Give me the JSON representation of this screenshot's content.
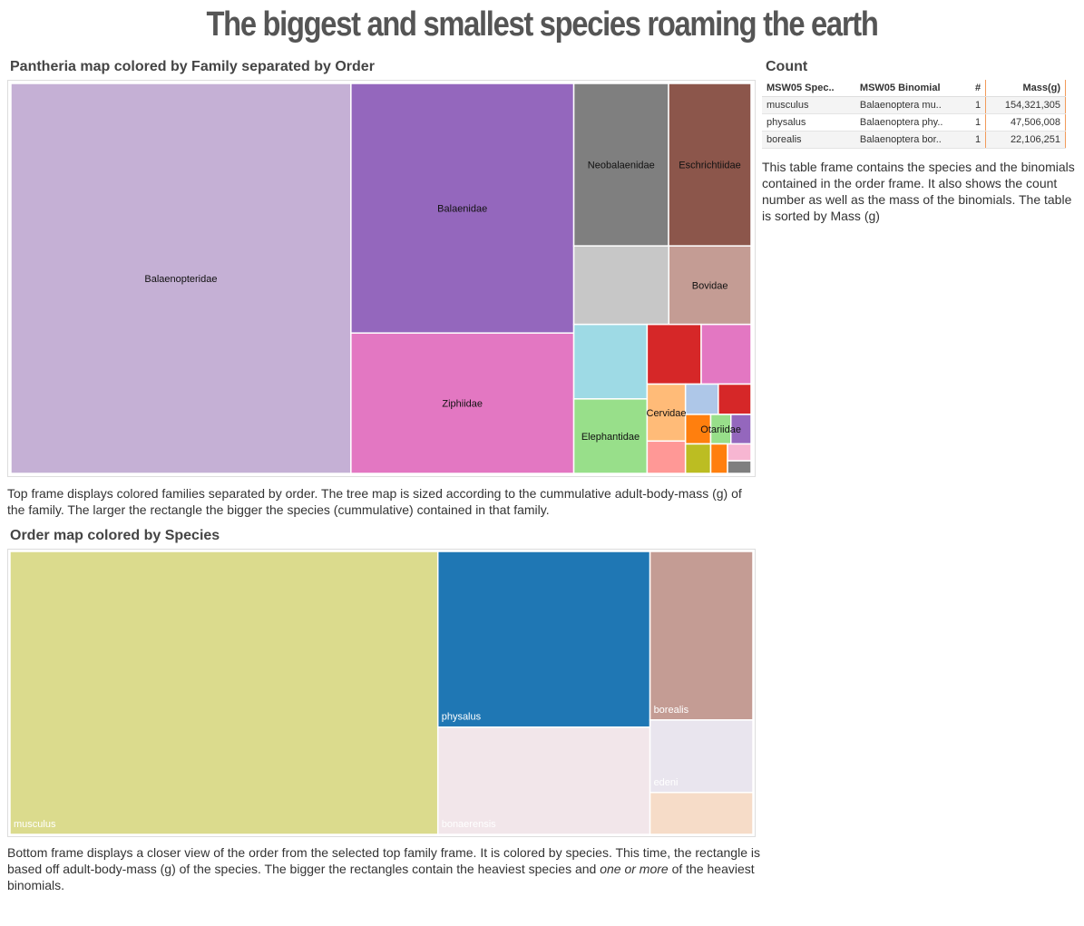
{
  "header": {
    "title": "The biggest and smallest species roaming the earth"
  },
  "chart_data": [
    {
      "type": "treemap",
      "title": "Pantheria map colored by Family separated by Order",
      "categories": [
        "Balaenopteridae",
        "Balaenidae",
        "Ziphiidae",
        "Neobalaenidae",
        "Eschrichtiidae",
        null,
        "Bovidae",
        null,
        "Elephantidae",
        null,
        null,
        "Cervidae",
        null,
        null,
        null,
        null,
        null,
        "Otariidae",
        null,
        null,
        null,
        null
      ],
      "values": [
        267000000,
        112000000,
        63000000,
        31000000,
        27000000,
        15000000,
        13000000,
        11000000,
        11000000,
        6500000,
        6000000,
        4400000,
        2500000,
        2000000,
        2000000,
        1500000,
        1500000,
        1200000,
        1200000,
        1000000,
        800000,
        600000
      ],
      "colors": [
        "#c5b0d5",
        "#9467bd",
        "#e377c2",
        "#7f7f7f",
        "#8c564b",
        "#c7c7c7",
        "#c49c94",
        "#9edae5",
        "#98df8a",
        "#d62728",
        "#e377c2",
        "#ffbb78",
        "#ff9896",
        "#aec7e8",
        "#d62728",
        "#ff7f0e",
        "#bcbd22",
        "#98df8a",
        "#9467bd",
        "#ff7f0e",
        "#f7b6d2",
        "#7f7f7f"
      ]
    },
    {
      "type": "treemap",
      "title": "Order map colored by Species",
      "categories": [
        "musculus",
        "physalus",
        "bonaerensis",
        "borealis",
        "edeni",
        null
      ],
      "values": [
        154321305,
        47506008,
        29000000,
        22106251,
        9500000,
        5500000
      ],
      "colors": [
        "#dbdb8d",
        "#1f77b4",
        "#f2e6ea",
        "#c49c94",
        "#e9e5ee",
        "#f6dcc8"
      ]
    }
  ],
  "table": {
    "title": "Count",
    "columns": [
      "MSW05 Spec..",
      "MSW05 Binomial",
      "#",
      "Mass(g)"
    ],
    "rows": [
      [
        "musculus",
        "Balaenoptera mu..",
        "1",
        "154,321,305"
      ],
      [
        "physalus",
        "Balaenoptera phy..",
        "1",
        "47,506,008"
      ],
      [
        "borealis",
        "Balaenoptera bor..",
        "1",
        "22,106,251"
      ]
    ]
  },
  "captions": {
    "top": "Top frame displays colored families separated by order. The tree map is sized according to the cummulative adult-body-mass (g) of the family. The larger the rectangle the bigger the species (cummulative) contained in that family.",
    "table": "This table frame contains the species and the binomials contained in the order frame. It also shows the count number as well as the mass of the binomials. The table is sorted by Mass (g)",
    "bottom": [
      "Bottom frame displays a closer view of  the order from the selected top family frame. It is colored by species. This time, the rectangle is based off adult-body-mass (g) of the species. The bigger the rectangles contain the heaviest species and ",
      "one or more",
      " of the heaviest binomials."
    ]
  }
}
